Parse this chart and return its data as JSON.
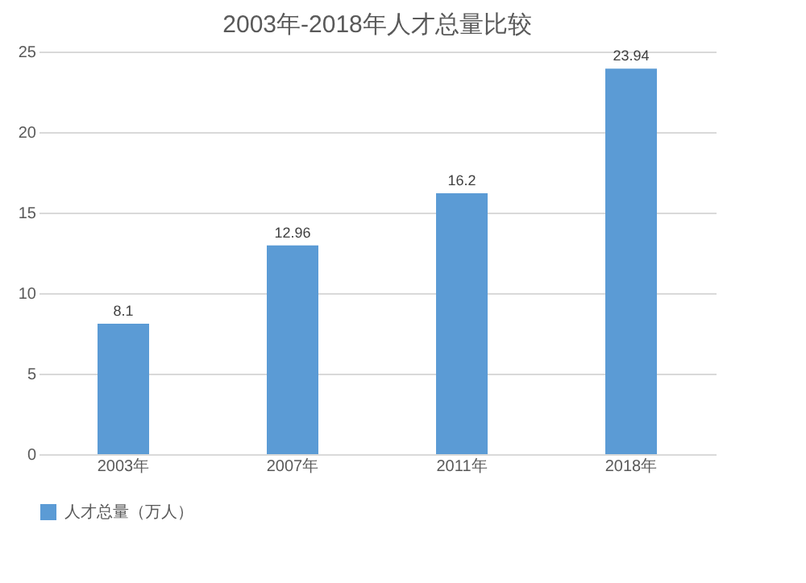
{
  "chart_data": {
    "type": "bar",
    "title": "2003年-2018年人才总量比较",
    "categories": [
      "2003年",
      "2007年",
      "2011年",
      "2018年"
    ],
    "series": [
      {
        "name": "人才总量（万人）",
        "color": "#5b9bd5",
        "values": [
          8.1,
          12.96,
          16.2,
          23.94
        ]
      }
    ],
    "ylim": [
      0,
      25
    ],
    "yticks": [
      0,
      5,
      10,
      15,
      20,
      25
    ],
    "grid": "y",
    "legend": "bottom",
    "data_labels": true
  }
}
